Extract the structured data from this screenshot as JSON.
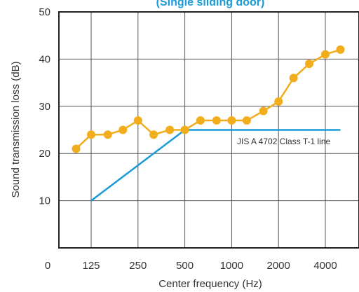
{
  "chart_data": {
    "type": "line",
    "title": "(Single sliding door)",
    "xlabel": "Center frequency (Hz)",
    "ylabel": "Sound transmission loss (dB)",
    "ylim": [
      0,
      50
    ],
    "y_ticks": [
      "10",
      "20",
      "30",
      "40",
      "50"
    ],
    "x_ticks": [
      "0",
      "125",
      "250",
      "500",
      "1000",
      "2000",
      "4000"
    ],
    "grid": true,
    "frequencies": [
      100,
      125,
      160,
      200,
      250,
      315,
      400,
      500,
      630,
      800,
      1000,
      1250,
      1600,
      2000,
      2500,
      3150,
      4000,
      5000
    ],
    "series": [
      {
        "values": [
          21,
          24,
          24,
          25,
          27,
          24,
          25,
          25,
          27,
          27,
          27,
          27,
          29,
          31,
          36,
          39,
          41,
          42
        ],
        "color": "#f2ad1c"
      }
    ],
    "reference_line": {
      "label": "JIS A 4702 Class T-1 line",
      "points": [
        [
          125,
          10
        ],
        [
          500,
          25
        ],
        [
          5000,
          25
        ]
      ],
      "color": "#1a9bd7"
    }
  }
}
